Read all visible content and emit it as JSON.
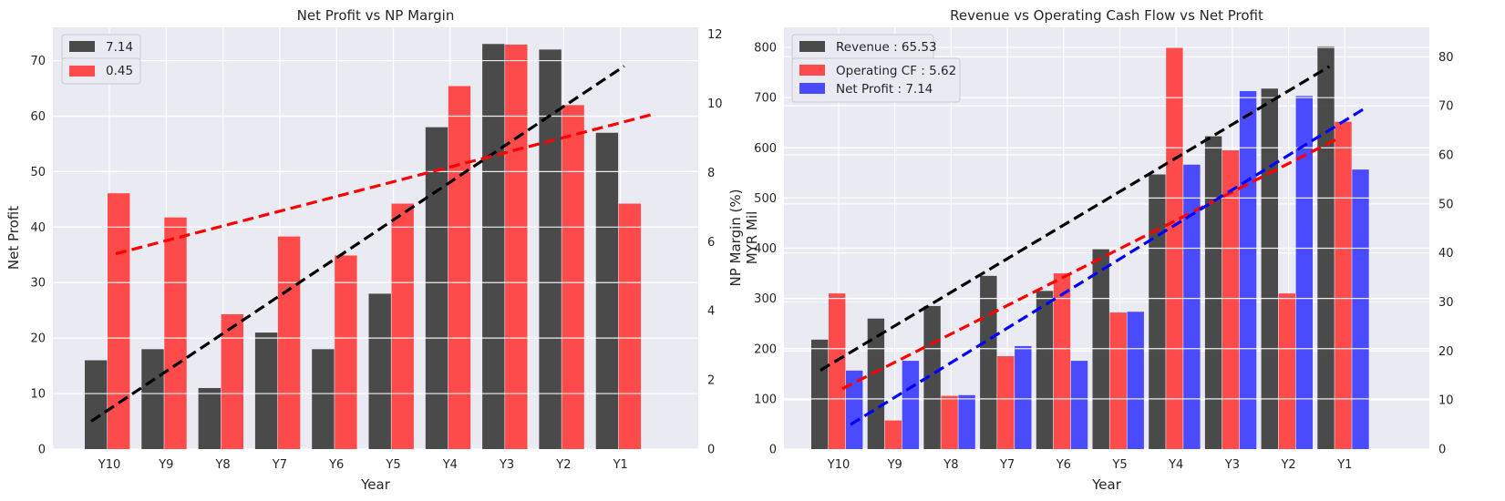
{
  "chart_data": [
    {
      "type": "bar",
      "title": "Net Profit vs NP Margin",
      "xlabel": "Year",
      "ylabel": "Net Profit",
      "ylabel_right": "NP Margin (%)",
      "categories": [
        "Y10",
        "Y9",
        "Y8",
        "Y7",
        "Y6",
        "Y5",
        "Y4",
        "Y3",
        "Y2",
        "Y1"
      ],
      "ylim": [
        0,
        76
      ],
      "ylim_right": [
        0,
        12.2
      ],
      "yticks": [
        0,
        10,
        20,
        30,
        40,
        50,
        60,
        70
      ],
      "yticks_right": [
        0,
        2,
        4,
        6,
        8,
        10,
        12
      ],
      "grid": true,
      "legend_position": "top-left",
      "series": [
        {
          "name": "7.14",
          "axis": "left",
          "color": "#333333",
          "values": [
            16,
            18,
            11,
            21,
            18,
            28,
            58,
            73,
            72,
            57
          ],
          "trend": [
            5,
            69
          ]
        },
        {
          "name": "0.45",
          "axis": "right",
          "color": "#ff3333",
          "values": [
            7.4,
            6.7,
            3.9,
            6.15,
            5.6,
            7.1,
            10.5,
            11.7,
            9.95,
            7.1
          ],
          "trend": [
            5.65,
            9.7
          ]
        }
      ]
    },
    {
      "type": "bar",
      "title": "Revenue vs Operating Cash Flow vs Net Profit",
      "xlabel": "Year",
      "ylabel": "MYR Mil",
      "ylabel_right": "",
      "categories": [
        "Y10",
        "Y9",
        "Y8",
        "Y7",
        "Y6",
        "Y5",
        "Y4",
        "Y3",
        "Y2",
        "Y1"
      ],
      "ylim": [
        0,
        840
      ],
      "ylim_right": [
        0,
        86
      ],
      "yticks": [
        0,
        100,
        200,
        300,
        400,
        500,
        600,
        700,
        800
      ],
      "yticks_right": [
        0,
        10,
        20,
        30,
        40,
        50,
        60,
        70,
        80
      ],
      "grid": true,
      "legend_position": "top-left",
      "series": [
        {
          "name": "Revenue : 65.53",
          "axis": "left",
          "color": "#333333",
          "values": [
            218,
            260,
            285,
            345,
            315,
            398,
            547,
            623,
            718,
            802
          ],
          "trend": [
            157,
            762
          ]
        },
        {
          "name": "Operating CF : 5.62",
          "axis": "left",
          "color": "#ff3333",
          "values": [
            310,
            57,
            106,
            185,
            350,
            272,
            800,
            595,
            310,
            652
          ],
          "trend": [
            120,
            618
          ]
        },
        {
          "name": "Net Profit : 7.14",
          "axis": "right",
          "color": "#3333ff",
          "values": [
            16,
            18,
            11,
            21,
            18,
            28,
            58,
            73,
            72,
            57
          ],
          "trend": [
            5,
            69.5
          ]
        }
      ]
    }
  ]
}
